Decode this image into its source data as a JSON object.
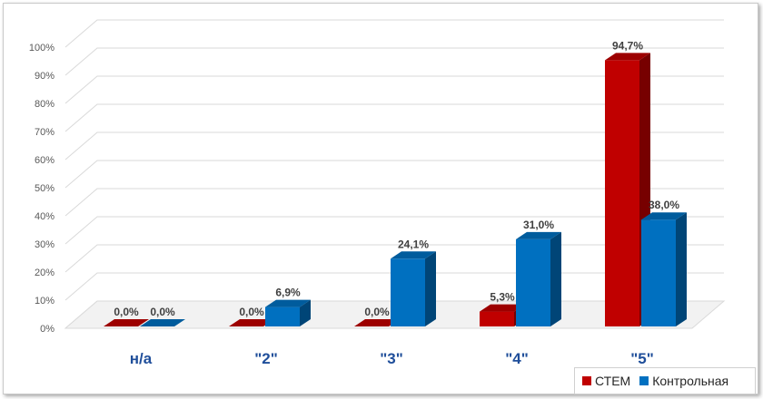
{
  "chart_data": {
    "type": "bar",
    "categories": [
      "н/а",
      "\"2\"",
      "\"3\"",
      "\"4\"",
      "\"5\""
    ],
    "series": [
      {
        "name": "СТЕМ",
        "values": [
          0.0,
          0.0,
          0.0,
          5.3,
          94.7
        ],
        "labels": [
          "0,0%",
          "0,0%",
          "0,0%",
          "5,3%",
          "94,7%"
        ],
        "color": "#c00000"
      },
      {
        "name": "Контрольная",
        "values": [
          0.0,
          6.9,
          24.1,
          31.0,
          38.0
        ],
        "labels": [
          "0,0%",
          "6,9%",
          "24,1%",
          "31,0%",
          "38,0%"
        ],
        "color": "#0070c0"
      }
    ],
    "y_ticks": [
      "0%",
      "10%",
      "20%",
      "30%",
      "40%",
      "50%",
      "60%",
      "70%",
      "80%",
      "90%",
      "100%"
    ],
    "ylim": [
      0,
      100
    ],
    "grid": true,
    "legend_position": "bottom-right",
    "style": "3d-clustered-column"
  }
}
